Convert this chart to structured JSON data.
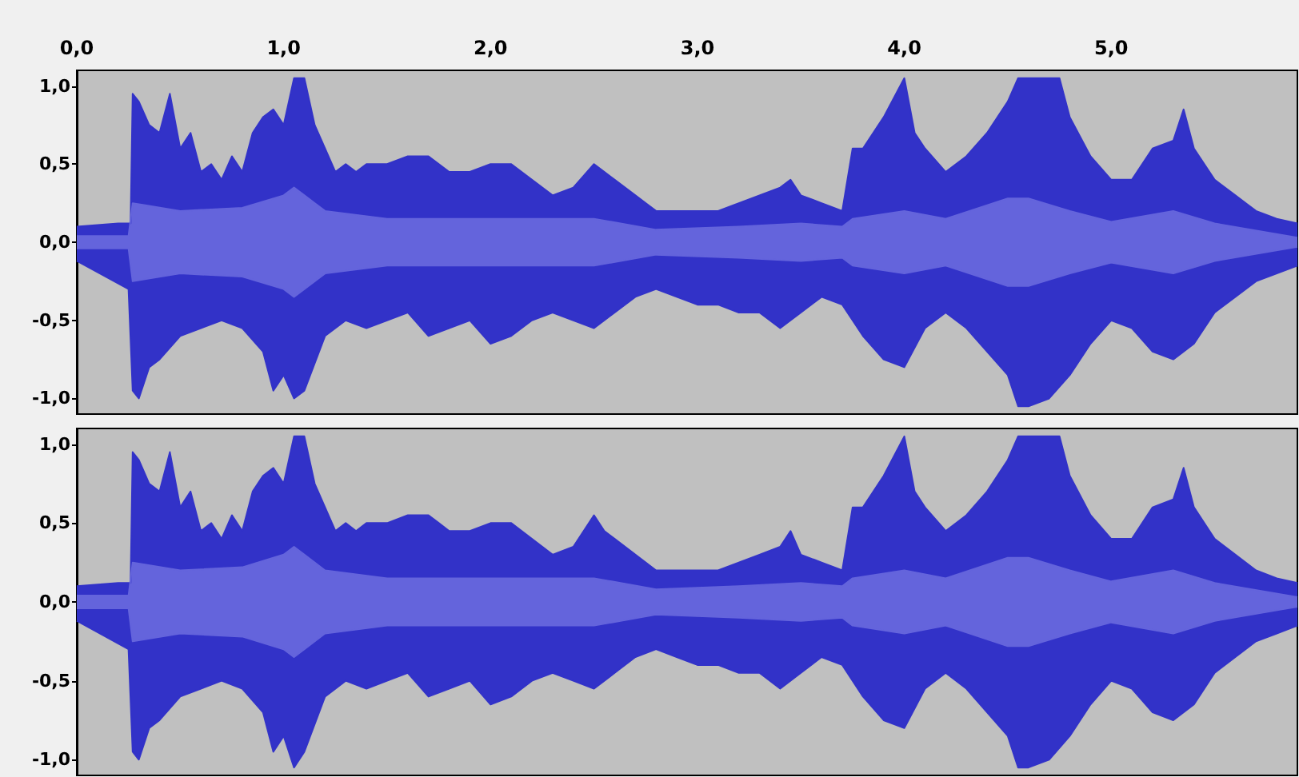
{
  "chart_data": [
    {
      "type": "area",
      "xlim": [
        0,
        5.9
      ],
      "ylim": [
        -1.1,
        1.1
      ],
      "xticks": [
        {
          "value": 0,
          "label": "0,0"
        },
        {
          "value": 0.5,
          "label": null
        },
        {
          "value": 1,
          "label": "1,0"
        },
        {
          "value": 1.5,
          "label": null
        },
        {
          "value": 2,
          "label": "2,0"
        },
        {
          "value": 2.5,
          "label": null
        },
        {
          "value": 3,
          "label": "3,0"
        },
        {
          "value": 3.5,
          "label": null
        },
        {
          "value": 4,
          "label": "4,0"
        },
        {
          "value": 4.5,
          "label": null
        },
        {
          "value": 5,
          "label": "5,0"
        },
        {
          "value": 5.5,
          "label": null
        }
      ],
      "yticks": [
        {
          "value": -1,
          "label": "-1,0"
        },
        {
          "value": -0.5,
          "label": "-0,5"
        },
        {
          "value": 0,
          "label": "0,0"
        },
        {
          "value": 0.5,
          "label": "0,5"
        },
        {
          "value": 1,
          "label": "1,0"
        }
      ],
      "series": [
        {
          "color": "#3232c8",
          "x": [
            0,
            0.2,
            0.26,
            0.27,
            0.3,
            0.35,
            0.4,
            0.45,
            0.5,
            0.55,
            0.6,
            0.65,
            0.7,
            0.75,
            0.8,
            0.85,
            0.9,
            0.95,
            1,
            1.05,
            1.1,
            1.15,
            1.2,
            1.25,
            1.3,
            1.35,
            1.4,
            1.5,
            1.6,
            1.7,
            1.75,
            1.8,
            1.9,
            2,
            2.1,
            2.2,
            2.3,
            2.4,
            2.5,
            2.55,
            2.6,
            2.7,
            2.8,
            2.9,
            3,
            3.1,
            3.2,
            3.3,
            3.4,
            3.45,
            3.5,
            3.6,
            3.7,
            3.75,
            3.8,
            3.9,
            4,
            4.05,
            4.1,
            4.2,
            4.3,
            4.4,
            4.5,
            4.55,
            4.6,
            4.7,
            4.75,
            4.8,
            4.9,
            5,
            5.1,
            5.2,
            5.3,
            5.35,
            5.4,
            5.5,
            5.6,
            5.7,
            5.8,
            5.9
          ],
          "values": [
            0.1,
            0.12,
            0.12,
            0.95,
            0.9,
            0.75,
            0.7,
            0.95,
            0.6,
            0.7,
            0.45,
            0.5,
            0.4,
            0.55,
            0.45,
            0.7,
            0.8,
            0.85,
            0.75,
            1.05,
            1.05,
            0.75,
            0.6,
            0.45,
            0.5,
            0.45,
            0.5,
            0.5,
            0.55,
            0.55,
            0.5,
            0.45,
            0.45,
            0.5,
            0.5,
            0.4,
            0.3,
            0.35,
            0.5,
            0.45,
            0.4,
            0.3,
            0.2,
            0.2,
            0.2,
            0.2,
            0.25,
            0.3,
            0.35,
            0.4,
            0.3,
            0.25,
            0.2,
            0.6,
            0.6,
            0.8,
            1.05,
            0.7,
            0.6,
            0.45,
            0.55,
            0.7,
            0.9,
            1.05,
            1.05,
            1.05,
            1.05,
            0.8,
            0.55,
            0.4,
            0.4,
            0.6,
            0.65,
            0.85,
            0.6,
            0.4,
            0.3,
            0.2,
            0.15,
            0.12
          ]
        },
        {
          "color": "#3232c8",
          "x": [
            0,
            0.25,
            0.27,
            0.3,
            0.35,
            0.4,
            0.5,
            0.6,
            0.7,
            0.8,
            0.9,
            0.95,
            1,
            1.05,
            1.1,
            1.2,
            1.3,
            1.4,
            1.5,
            1.6,
            1.7,
            1.8,
            1.9,
            2,
            2.1,
            2.2,
            2.3,
            2.4,
            2.5,
            2.6,
            2.7,
            2.8,
            2.9,
            3,
            3.1,
            3.2,
            3.3,
            3.4,
            3.5,
            3.6,
            3.7,
            3.75,
            3.8,
            3.9,
            4,
            4.1,
            4.2,
            4.3,
            4.4,
            4.5,
            4.55,
            4.6,
            4.7,
            4.8,
            4.9,
            5,
            5.1,
            5.2,
            5.3,
            5.4,
            5.5,
            5.6,
            5.7,
            5.8,
            5.9
          ],
          "values": [
            -0.12,
            -0.3,
            -0.95,
            -1,
            -0.8,
            -0.75,
            -0.6,
            -0.55,
            -0.5,
            -0.55,
            -0.7,
            -0.95,
            -0.85,
            -1,
            -0.95,
            -0.6,
            -0.5,
            -0.55,
            -0.5,
            -0.45,
            -0.6,
            -0.55,
            -0.5,
            -0.65,
            -0.6,
            -0.5,
            -0.45,
            -0.5,
            -0.55,
            -0.45,
            -0.35,
            -0.3,
            -0.35,
            -0.4,
            -0.4,
            -0.45,
            -0.45,
            -0.55,
            -0.45,
            -0.35,
            -0.4,
            -0.5,
            -0.6,
            -0.75,
            -0.8,
            -0.55,
            -0.45,
            -0.55,
            -0.7,
            -0.85,
            -1.05,
            -1.05,
            -1,
            -0.85,
            -0.65,
            -0.5,
            -0.55,
            -0.7,
            -0.75,
            -0.65,
            -0.45,
            -0.35,
            -0.25,
            -0.2,
            -0.15
          ]
        },
        {
          "color": "#6464dc",
          "x": [
            0,
            0.25,
            0.27,
            0.5,
            0.8,
            1,
            1.05,
            1.1,
            1.2,
            1.5,
            2,
            2.5,
            2.8,
            3.2,
            3.5,
            3.7,
            3.75,
            4,
            4.2,
            4.5,
            4.6,
            4.8,
            5,
            5.3,
            5.5,
            5.9
          ],
          "values": [
            0.04,
            0.04,
            0.25,
            0.2,
            0.22,
            0.3,
            0.35,
            0.3,
            0.2,
            0.15,
            0.15,
            0.15,
            0.08,
            0.1,
            0.12,
            0.1,
            0.15,
            0.2,
            0.15,
            0.28,
            0.28,
            0.2,
            0.13,
            0.2,
            0.12,
            0.03
          ]
        },
        {
          "color": "#6464dc",
          "x": [
            0,
            0.25,
            0.27,
            0.5,
            0.8,
            1,
            1.05,
            1.1,
            1.2,
            1.5,
            2,
            2.5,
            2.8,
            3.2,
            3.5,
            3.7,
            3.75,
            4,
            4.2,
            4.5,
            4.6,
            4.8,
            5,
            5.3,
            5.5,
            5.9
          ],
          "values": [
            -0.04,
            -0.04,
            -0.25,
            -0.2,
            -0.22,
            -0.3,
            -0.35,
            -0.3,
            -0.2,
            -0.15,
            -0.15,
            -0.15,
            -0.08,
            -0.1,
            -0.12,
            -0.1,
            -0.15,
            -0.2,
            -0.15,
            -0.28,
            -0.28,
            -0.2,
            -0.13,
            -0.2,
            -0.12,
            -0.03
          ]
        }
      ]
    },
    {
      "type": "area",
      "xlim": [
        0,
        5.9
      ],
      "ylim": [
        -1.1,
        1.1
      ],
      "tick_labels": "y",
      "yticks": [
        {
          "value": -1,
          "label": "-1,0"
        },
        {
          "value": -0.5,
          "label": "-0,5"
        },
        {
          "value": 0,
          "label": "0,0"
        },
        {
          "value": 0.5,
          "label": "0,5"
        },
        {
          "value": 1,
          "label": "1,0"
        }
      ],
      "series": [
        {
          "color": "#3232c8",
          "x": [
            0,
            0.2,
            0.26,
            0.27,
            0.3,
            0.35,
            0.4,
            0.45,
            0.5,
            0.55,
            0.6,
            0.65,
            0.7,
            0.75,
            0.8,
            0.85,
            0.9,
            0.95,
            1,
            1.05,
            1.1,
            1.15,
            1.2,
            1.25,
            1.3,
            1.35,
            1.4,
            1.5,
            1.6,
            1.7,
            1.75,
            1.8,
            1.9,
            2,
            2.1,
            2.2,
            2.3,
            2.4,
            2.5,
            2.55,
            2.6,
            2.7,
            2.8,
            2.9,
            3,
            3.1,
            3.2,
            3.3,
            3.4,
            3.45,
            3.5,
            3.6,
            3.7,
            3.75,
            3.8,
            3.9,
            4,
            4.05,
            4.1,
            4.2,
            4.3,
            4.4,
            4.5,
            4.55,
            4.6,
            4.7,
            4.75,
            4.8,
            4.9,
            5,
            5.1,
            5.2,
            5.3,
            5.35,
            5.4,
            5.5,
            5.6,
            5.7,
            5.8,
            5.9
          ],
          "values": [
            0.1,
            0.12,
            0.12,
            0.95,
            0.9,
            0.75,
            0.7,
            0.95,
            0.6,
            0.7,
            0.45,
            0.5,
            0.4,
            0.55,
            0.45,
            0.7,
            0.8,
            0.85,
            0.75,
            1.05,
            1.05,
            0.75,
            0.6,
            0.45,
            0.5,
            0.45,
            0.5,
            0.5,
            0.55,
            0.55,
            0.5,
            0.45,
            0.45,
            0.5,
            0.5,
            0.4,
            0.3,
            0.35,
            0.55,
            0.45,
            0.4,
            0.3,
            0.2,
            0.2,
            0.2,
            0.2,
            0.25,
            0.3,
            0.35,
            0.45,
            0.3,
            0.25,
            0.2,
            0.6,
            0.6,
            0.8,
            1.05,
            0.7,
            0.6,
            0.45,
            0.55,
            0.7,
            0.9,
            1.05,
            1.05,
            1.05,
            1.05,
            0.8,
            0.55,
            0.4,
            0.4,
            0.6,
            0.65,
            0.85,
            0.6,
            0.4,
            0.3,
            0.2,
            0.15,
            0.12
          ]
        },
        {
          "color": "#3232c8",
          "x": [
            0,
            0.25,
            0.27,
            0.3,
            0.35,
            0.4,
            0.5,
            0.6,
            0.7,
            0.8,
            0.9,
            0.95,
            1,
            1.05,
            1.1,
            1.2,
            1.3,
            1.4,
            1.5,
            1.6,
            1.7,
            1.8,
            1.9,
            2,
            2.1,
            2.2,
            2.3,
            2.4,
            2.5,
            2.6,
            2.7,
            2.8,
            2.9,
            3,
            3.1,
            3.2,
            3.3,
            3.4,
            3.5,
            3.6,
            3.7,
            3.75,
            3.8,
            3.9,
            4,
            4.1,
            4.2,
            4.3,
            4.4,
            4.5,
            4.55,
            4.6,
            4.7,
            4.8,
            4.9,
            5,
            5.1,
            5.2,
            5.3,
            5.4,
            5.5,
            5.6,
            5.7,
            5.8,
            5.9
          ],
          "values": [
            -0.12,
            -0.3,
            -0.95,
            -1,
            -0.8,
            -0.75,
            -0.6,
            -0.55,
            -0.5,
            -0.55,
            -0.7,
            -0.95,
            -0.85,
            -1.05,
            -0.95,
            -0.6,
            -0.5,
            -0.55,
            -0.5,
            -0.45,
            -0.6,
            -0.55,
            -0.5,
            -0.65,
            -0.6,
            -0.5,
            -0.45,
            -0.5,
            -0.55,
            -0.45,
            -0.35,
            -0.3,
            -0.35,
            -0.4,
            -0.4,
            -0.45,
            -0.45,
            -0.55,
            -0.45,
            -0.35,
            -0.4,
            -0.5,
            -0.6,
            -0.75,
            -0.8,
            -0.55,
            -0.45,
            -0.55,
            -0.7,
            -0.85,
            -1.05,
            -1.05,
            -1,
            -0.85,
            -0.65,
            -0.5,
            -0.55,
            -0.7,
            -0.75,
            -0.65,
            -0.45,
            -0.35,
            -0.25,
            -0.2,
            -0.15
          ]
        },
        {
          "color": "#6464dc",
          "x": [
            0,
            0.25,
            0.27,
            0.5,
            0.8,
            1,
            1.05,
            1.1,
            1.2,
            1.5,
            2,
            2.5,
            2.8,
            3.2,
            3.5,
            3.7,
            3.75,
            4,
            4.2,
            4.5,
            4.6,
            4.8,
            5,
            5.3,
            5.5,
            5.9
          ],
          "values": [
            0.04,
            0.04,
            0.25,
            0.2,
            0.22,
            0.3,
            0.35,
            0.3,
            0.2,
            0.15,
            0.15,
            0.15,
            0.08,
            0.1,
            0.12,
            0.1,
            0.15,
            0.2,
            0.15,
            0.28,
            0.28,
            0.2,
            0.13,
            0.2,
            0.12,
            0.03
          ]
        },
        {
          "color": "#6464dc",
          "x": [
            0,
            0.25,
            0.27,
            0.5,
            0.8,
            1,
            1.05,
            1.1,
            1.2,
            1.5,
            2,
            2.5,
            2.8,
            3.2,
            3.5,
            3.7,
            3.75,
            4,
            4.2,
            4.5,
            4.6,
            4.8,
            5,
            5.3,
            5.5,
            5.9
          ],
          "values": [
            -0.04,
            -0.04,
            -0.25,
            -0.2,
            -0.22,
            -0.3,
            -0.35,
            -0.3,
            -0.2,
            -0.15,
            -0.15,
            -0.15,
            -0.08,
            -0.1,
            -0.12,
            -0.1,
            -0.15,
            -0.2,
            -0.15,
            -0.28,
            -0.28,
            -0.2,
            -0.13,
            -0.2,
            -0.12,
            -0.03
          ]
        }
      ]
    }
  ]
}
